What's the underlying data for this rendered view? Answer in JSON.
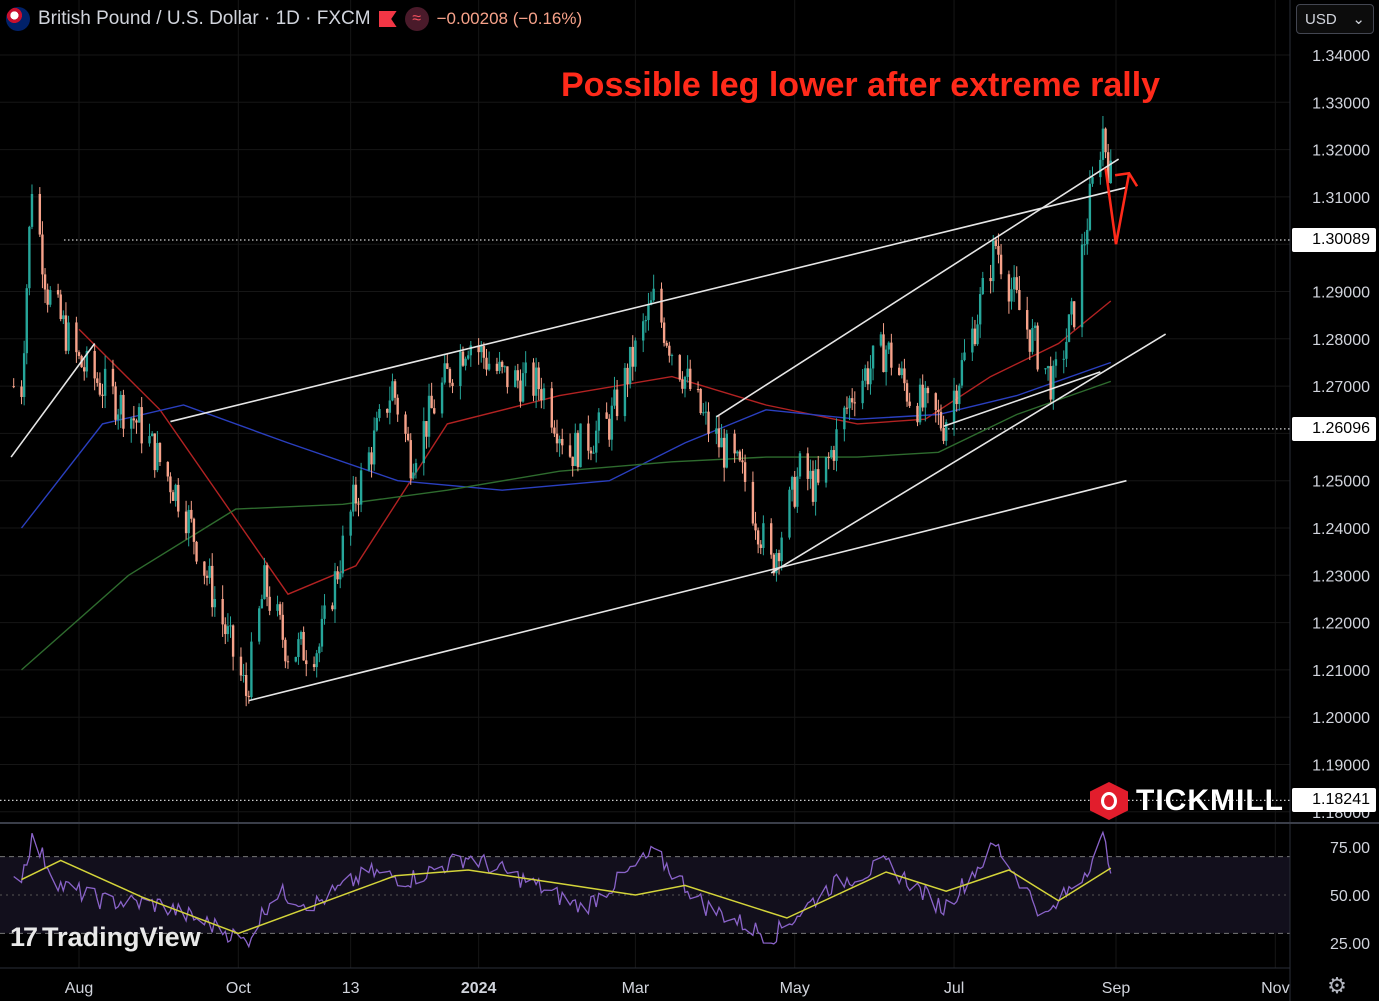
{
  "header": {
    "symbol_title": "British Pound / U.S. Dollar · 1D · FXCM",
    "change": "−0.00208 (−0.16%)"
  },
  "currency_select": {
    "value": "USD"
  },
  "annotation": "Possible leg lower after extreme rally",
  "price_tags": [
    {
      "value": 1.30089,
      "label": "1.30089"
    },
    {
      "value": 1.26096,
      "label": "1.26096"
    },
    {
      "value": 1.18241,
      "label": "1.18241"
    }
  ],
  "branding": {
    "tickmill": "TICKMILL",
    "tradingview": "TradingView"
  },
  "colors": {
    "up_candle": "#26a69a",
    "down_candle": "#f7a28a",
    "ma_red": "#b22222",
    "ma_blue": "#2a3fbf",
    "ma_green": "#2e6b2e",
    "rsi_line": "#8a63c9",
    "rsi_signal": "#d4d43a",
    "annotation": "#ff2a1a"
  },
  "chart_data": {
    "type": "candlestick",
    "symbol": "GBPUSD",
    "ylim": [
      1.18,
      1.345
    ],
    "y_ticks": [
      "1.34000",
      "1.33000",
      "1.32000",
      "1.31000",
      "1.30000",
      "1.29000",
      "1.28000",
      "1.27000",
      "1.26000",
      "1.25000",
      "1.24000",
      "1.23000",
      "1.22000",
      "1.21000",
      "1.20000",
      "1.19000",
      "1.18000"
    ],
    "x_ticks": [
      "Aug",
      "Oct",
      "13",
      "2024",
      "Mar",
      "May",
      "Jul",
      "Sep",
      "Nov"
    ],
    "close_path": [
      {
        "date": "2023-07-10",
        "close": 1.27
      },
      {
        "date": "2023-07-14",
        "close": 1.313
      },
      {
        "date": "2023-07-20",
        "close": 1.29
      },
      {
        "date": "2023-08-01",
        "close": 1.275
      },
      {
        "date": "2023-08-10",
        "close": 1.27
      },
      {
        "date": "2023-08-24",
        "close": 1.262
      },
      {
        "date": "2023-09-10",
        "close": 1.245
      },
      {
        "date": "2023-09-25",
        "close": 1.22
      },
      {
        "date": "2023-10-04",
        "close": 1.205
      },
      {
        "date": "2023-10-11",
        "close": 1.228
      },
      {
        "date": "2023-10-20",
        "close": 1.214
      },
      {
        "date": "2023-11-01",
        "close": 1.215
      },
      {
        "date": "2023-11-14",
        "close": 1.245
      },
      {
        "date": "2023-11-29",
        "close": 1.27
      },
      {
        "date": "2023-12-06",
        "close": 1.255
      },
      {
        "date": "2023-12-20",
        "close": 1.272
      },
      {
        "date": "2023-12-28",
        "close": 1.28
      },
      {
        "date": "2024-01-10",
        "close": 1.272
      },
      {
        "date": "2024-01-25",
        "close": 1.27
      },
      {
        "date": "2024-02-05",
        "close": 1.256
      },
      {
        "date": "2024-02-20",
        "close": 1.262
      },
      {
        "date": "2024-03-08",
        "close": 1.288
      },
      {
        "date": "2024-03-15",
        "close": 1.278
      },
      {
        "date": "2024-03-28",
        "close": 1.262
      },
      {
        "date": "2024-04-12",
        "close": 1.25
      },
      {
        "date": "2024-04-22",
        "close": 1.232
      },
      {
        "date": "2024-05-03",
        "close": 1.252
      },
      {
        "date": "2024-05-10",
        "close": 1.248
      },
      {
        "date": "2024-05-24",
        "close": 1.27
      },
      {
        "date": "2024-06-05",
        "close": 1.278
      },
      {
        "date": "2024-06-14",
        "close": 1.268
      },
      {
        "date": "2024-06-27",
        "close": 1.262
      },
      {
        "date": "2024-07-08",
        "close": 1.281
      },
      {
        "date": "2024-07-17",
        "close": 1.3
      },
      {
        "date": "2024-07-26",
        "close": 1.286
      },
      {
        "date": "2024-08-08",
        "close": 1.27
      },
      {
        "date": "2024-08-16",
        "close": 1.286
      },
      {
        "date": "2024-08-22",
        "close": 1.309
      },
      {
        "date": "2024-08-27",
        "close": 1.324
      },
      {
        "date": "2024-08-30",
        "close": 1.314
      }
    ],
    "moving_averages": [
      {
        "color": "#b22222",
        "points": [
          [
            "2023-08-01",
            1.282
          ],
          [
            "2023-09-01",
            1.265
          ],
          [
            "2023-10-20",
            1.226
          ],
          [
            "2023-11-15",
            1.232
          ],
          [
            "2023-12-20",
            1.262
          ],
          [
            "2024-02-01",
            1.268
          ],
          [
            "2024-03-15",
            1.272
          ],
          [
            "2024-04-20",
            1.266
          ],
          [
            "2024-05-25",
            1.262
          ],
          [
            "2024-06-20",
            1.263
          ],
          [
            "2024-07-15",
            1.272
          ],
          [
            "2024-08-10",
            1.279
          ],
          [
            "2024-08-30",
            1.288
          ]
        ]
      },
      {
        "color": "#2a3fbf",
        "points": [
          [
            "2023-07-10",
            1.24
          ],
          [
            "2023-08-10",
            1.262
          ],
          [
            "2023-09-10",
            1.266
          ],
          [
            "2023-10-20",
            1.258
          ],
          [
            "2023-12-01",
            1.25
          ],
          [
            "2024-01-10",
            1.248
          ],
          [
            "2024-02-20",
            1.25
          ],
          [
            "2024-03-20",
            1.258
          ],
          [
            "2024-04-20",
            1.265
          ],
          [
            "2024-05-25",
            1.263
          ],
          [
            "2024-06-25",
            1.264
          ],
          [
            "2024-07-25",
            1.268
          ],
          [
            "2024-08-30",
            1.275
          ]
        ]
      },
      {
        "color": "#2e6b2e",
        "points": [
          [
            "2023-07-10",
            1.21
          ],
          [
            "2023-08-20",
            1.23
          ],
          [
            "2023-09-30",
            1.244
          ],
          [
            "2023-11-10",
            1.245
          ],
          [
            "2023-12-20",
            1.248
          ],
          [
            "2024-02-01",
            1.252
          ],
          [
            "2024-03-15",
            1.254
          ],
          [
            "2024-04-20",
            1.255
          ],
          [
            "2024-05-25",
            1.255
          ],
          [
            "2024-06-25",
            1.256
          ],
          [
            "2024-07-25",
            1.264
          ],
          [
            "2024-08-30",
            1.271
          ]
        ]
      }
    ],
    "trendlines": [
      {
        "from": [
          "2023-10-05",
          1.2035
        ],
        "to": [
          "2024-09-05",
          1.25
        ]
      },
      {
        "from": [
          "2023-09-05",
          1.2625
        ],
        "to": [
          "2024-09-05",
          1.312
        ]
      },
      {
        "from": [
          "2024-04-22",
          1.2305
        ],
        "to": [
          "2024-09-20",
          1.281
        ]
      },
      {
        "from": [
          "2024-04-01",
          1.2635
        ],
        "to": [
          "2024-09-02",
          1.318
        ]
      },
      {
        "from": [
          "2024-06-27",
          1.2615
        ],
        "to": [
          "2024-08-26",
          1.273
        ]
      },
      {
        "from": [
          "2023-07-06",
          1.255
        ],
        "to": [
          "2023-08-07",
          1.279
        ]
      }
    ],
    "projection_arrow": [
      [
        "2024-08-28",
        1.316
      ],
      [
        "2024-09-01",
        1.3
      ],
      [
        "2024-09-06",
        1.315
      ]
    ],
    "rsi": {
      "ylim": [
        20,
        85
      ],
      "y_ticks": [
        "75.00",
        "50.00",
        "25.00"
      ],
      "levels": [
        70,
        30
      ],
      "path": [
        {
          "date": "2023-07-10",
          "value": 60
        },
        {
          "date": "2023-07-14",
          "value": 79
        },
        {
          "date": "2023-07-25",
          "value": 55
        },
        {
          "date": "2023-08-10",
          "value": 47
        },
        {
          "date": "2023-09-01",
          "value": 45
        },
        {
          "date": "2023-09-25",
          "value": 32
        },
        {
          "date": "2023-10-04",
          "value": 25
        },
        {
          "date": "2023-10-15",
          "value": 52
        },
        {
          "date": "2023-10-30",
          "value": 45
        },
        {
          "date": "2023-11-20",
          "value": 62
        },
        {
          "date": "2023-12-05",
          "value": 58
        },
        {
          "date": "2023-12-28",
          "value": 70
        },
        {
          "date": "2024-01-20",
          "value": 57
        },
        {
          "date": "2024-02-10",
          "value": 43
        },
        {
          "date": "2024-03-08",
          "value": 72
        },
        {
          "date": "2024-03-28",
          "value": 44
        },
        {
          "date": "2024-04-22",
          "value": 28
        },
        {
          "date": "2024-05-15",
          "value": 55
        },
        {
          "date": "2024-06-05",
          "value": 66
        },
        {
          "date": "2024-06-27",
          "value": 43
        },
        {
          "date": "2024-07-17",
          "value": 76
        },
        {
          "date": "2024-08-05",
          "value": 38
        },
        {
          "date": "2024-08-20",
          "value": 62
        },
        {
          "date": "2024-08-27",
          "value": 79
        },
        {
          "date": "2024-08-30",
          "value": 66
        }
      ],
      "signal": [
        {
          "date": "2023-07-10",
          "value": 58
        },
        {
          "date": "2023-07-25",
          "value": 68
        },
        {
          "date": "2023-08-25",
          "value": 49
        },
        {
          "date": "2023-10-01",
          "value": 30
        },
        {
          "date": "2023-10-25",
          "value": 42
        },
        {
          "date": "2023-11-30",
          "value": 60
        },
        {
          "date": "2023-12-28",
          "value": 63
        },
        {
          "date": "2024-02-01",
          "value": 56
        },
        {
          "date": "2024-03-01",
          "value": 50
        },
        {
          "date": "2024-03-20",
          "value": 55
        },
        {
          "date": "2024-04-28",
          "value": 38
        },
        {
          "date": "2024-06-05",
          "value": 62
        },
        {
          "date": "2024-06-28",
          "value": 52
        },
        {
          "date": "2024-07-22",
          "value": 63
        },
        {
          "date": "2024-08-10",
          "value": 47
        },
        {
          "date": "2024-08-30",
          "value": 64
        }
      ]
    }
  }
}
